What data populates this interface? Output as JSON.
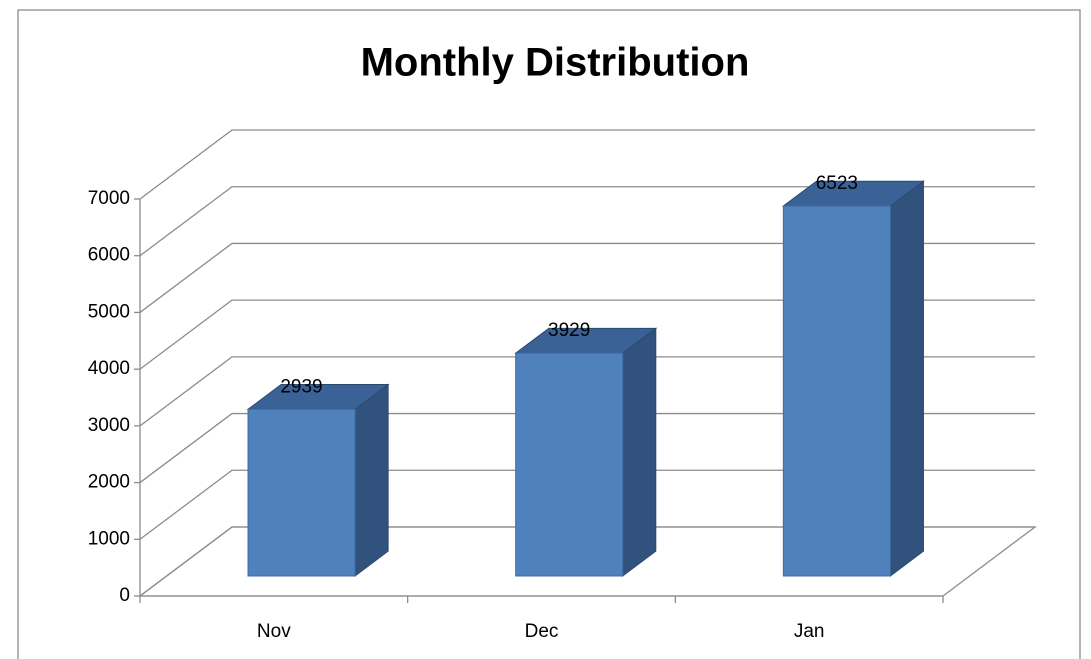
{
  "chart_data": {
    "type": "bar3d",
    "title": "Monthly Distribution",
    "categories": [
      "Nov",
      "Dec",
      "Jan"
    ],
    "values": [
      2939,
      3929,
      6523
    ],
    "color": "#4f81bd",
    "ylim": [
      0,
      7000
    ],
    "yticks": [
      0,
      1000,
      2000,
      3000,
      4000,
      5000,
      6000,
      7000
    ],
    "grid": true
  }
}
